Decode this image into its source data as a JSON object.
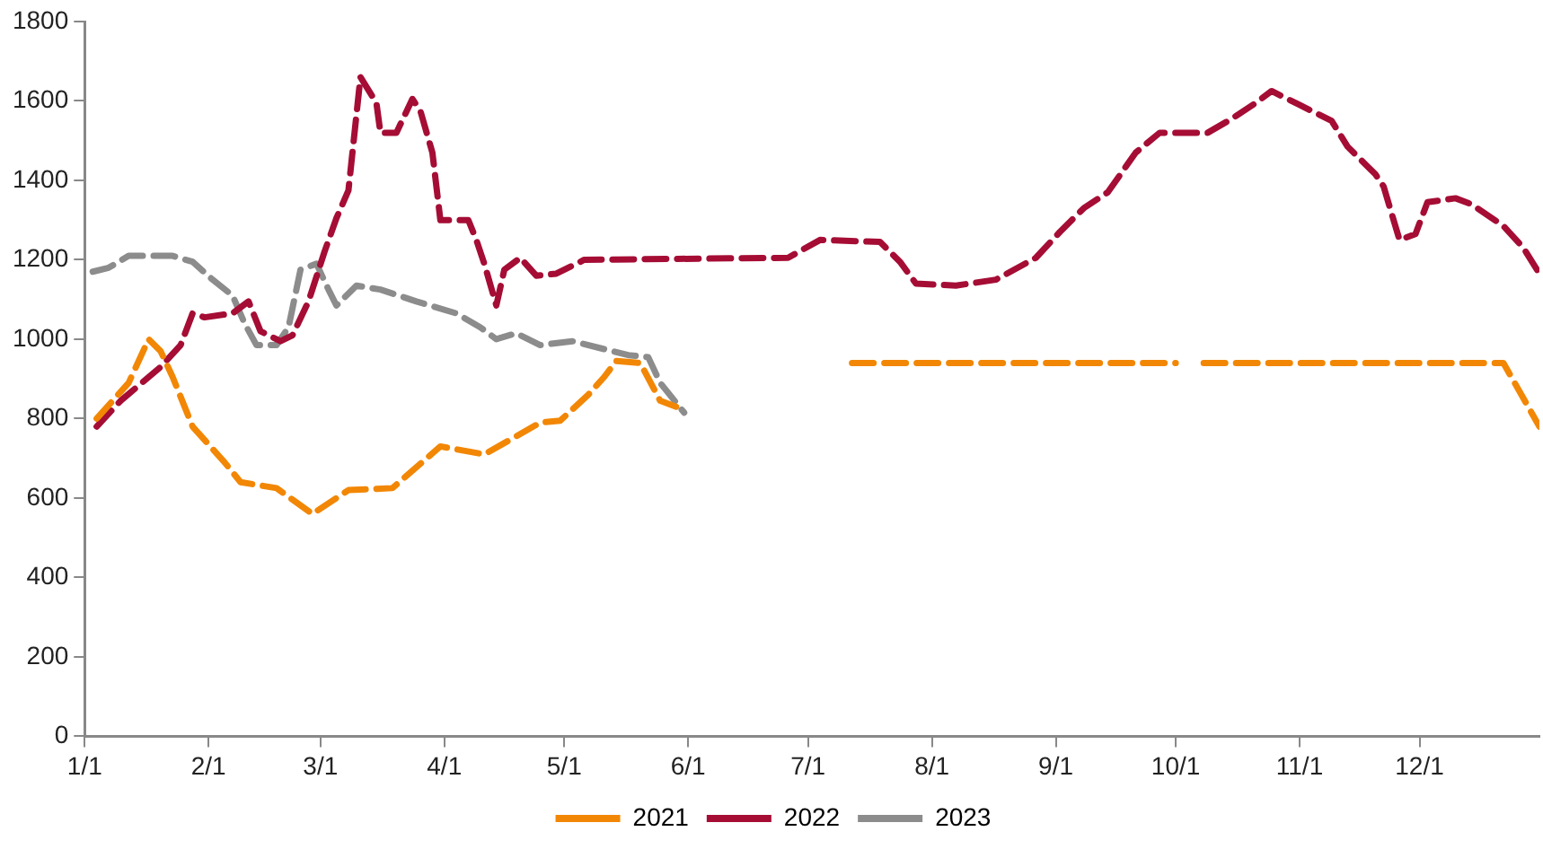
{
  "chart_data": {
    "type": "line",
    "line_style": "dashed",
    "marker": "none",
    "grid": false,
    "legend": "bottom",
    "xlim": [
      "--01-01",
      "--12-31"
    ],
    "xticks": [
      {
        "value": "--01-01",
        "label": "1/1"
      },
      {
        "value": "--02-01",
        "label": "2/1"
      },
      {
        "value": "--03-01",
        "label": "3/1"
      },
      {
        "value": "--04-01",
        "label": "4/1"
      },
      {
        "value": "--05-01",
        "label": "5/1"
      },
      {
        "value": "--06-01",
        "label": "6/1"
      },
      {
        "value": "--07-01",
        "label": "7/1"
      },
      {
        "value": "--08-01",
        "label": "8/1"
      },
      {
        "value": "--09-01",
        "label": "9/1"
      },
      {
        "value": "--10-01",
        "label": "10/1"
      },
      {
        "value": "--11-01",
        "label": "11/1"
      },
      {
        "value": "--12-01",
        "label": "12/1"
      }
    ],
    "ylim": [
      0,
      1800
    ],
    "yticks": [
      0,
      200,
      400,
      600,
      800,
      1000,
      1200,
      1400,
      1600,
      1800
    ],
    "series": [
      {
        "name": "2021",
        "color": "#f28705",
        "x": [
          "--01-04",
          "--01-12",
          "--01-17",
          "--01-20",
          "--01-23",
          "--01-28",
          "--02-05",
          "--02-09",
          "--02-18",
          "--02-27",
          "--03-08",
          "--03-19",
          "--03-31",
          "--04-11",
          "--04-25",
          "--04-30",
          "--05-07",
          "--05-11",
          "--05-14",
          "--05-20",
          "--05-25",
          "--05-29",
          "--06-20",
          "--07-12",
          "--10-01",
          "--10-04",
          "--10-08",
          "--12-22",
          "--12-31"
        ],
        "values": [
          800,
          890,
          1000,
          970,
          905,
          780,
          690,
          640,
          625,
          560,
          620,
          625,
          730,
          710,
          790,
          795,
          860,
          905,
          945,
          940,
          845,
          830,
          null,
          940,
          940,
          null,
          940,
          940,
          780
        ]
      },
      {
        "name": "2022",
        "color": "#a50d35",
        "x": [
          "--01-04",
          "--01-10",
          "--01-20",
          "--01-25",
          "--01-28",
          "--01-31",
          "--02-07",
          "--02-11",
          "--02-14",
          "--02-19",
          "--02-22",
          "--02-26",
          "--03-02",
          "--03-05",
          "--03-08",
          "--03-11",
          "--03-15",
          "--03-16",
          "--03-20",
          "--03-24",
          "--03-26",
          "--03-29",
          "--03-31",
          "--04-07",
          "--04-09",
          "--04-11",
          "--04-14",
          "--04-16",
          "--04-20",
          "--04-24",
          "--04-29",
          "--05-06",
          "--06-26",
          "--07-04",
          "--07-19",
          "--07-24",
          "--07-28",
          "--08-07",
          "--08-17",
          "--08-27",
          "--09-02",
          "--09-08",
          "--09-14",
          "--09-21",
          "--09-27",
          "--10-01",
          "--10-09",
          "--10-15",
          "--10-21",
          "--10-25",
          "--11-01",
          "--11-09",
          "--11-13",
          "--11-20",
          "--11-22",
          "--11-26",
          "--11-30",
          "--12-03",
          "--12-10",
          "--12-14",
          "--12-22",
          "--12-27",
          "--12-31"
        ],
        "values": [
          780,
          845,
          930,
          985,
          1065,
          1055,
          1065,
          1095,
          1020,
          995,
          1010,
          1095,
          1220,
          1305,
          1375,
          1660,
          1595,
          1520,
          1520,
          1605,
          1575,
          1470,
          1300,
          1300,
          1250,
          1190,
          1085,
          1175,
          1205,
          1160,
          1165,
          1200,
          1205,
          1250,
          1245,
          1195,
          1140,
          1135,
          1150,
          1205,
          1270,
          1330,
          1370,
          1470,
          1520,
          1520,
          1520,
          1555,
          1595,
          1625,
          1590,
          1550,
          1485,
          1415,
          1385,
          1250,
          1265,
          1345,
          1355,
          1340,
          1285,
          1230,
          1165
        ]
      },
      {
        "name": "2023",
        "color": "#8c8c8c",
        "x": [
          "--01-03",
          "--01-07",
          "--01-12",
          "--01-23",
          "--01-28",
          "--02-02",
          "--02-07",
          "--02-10",
          "--02-13",
          "--02-18",
          "--02-21",
          "--02-24",
          "--02-28",
          "--03-03",
          "--03-05",
          "--03-10",
          "--03-16",
          "--03-25",
          "--04-04",
          "--04-10",
          "--04-14",
          "--04-19",
          "--04-25",
          "--05-03",
          "--05-11",
          "--05-17",
          "--05-22",
          "--05-25",
          "--05-31"
        ],
        "values": [
          1170,
          1180,
          1210,
          1210,
          1195,
          1150,
          1110,
          1040,
          985,
          985,
          1030,
          1175,
          1190,
          1125,
          1085,
          1135,
          1125,
          1095,
          1065,
          1030,
          1000,
          1015,
          985,
          995,
          975,
          960,
          955,
          890,
          815
        ]
      }
    ]
  }
}
